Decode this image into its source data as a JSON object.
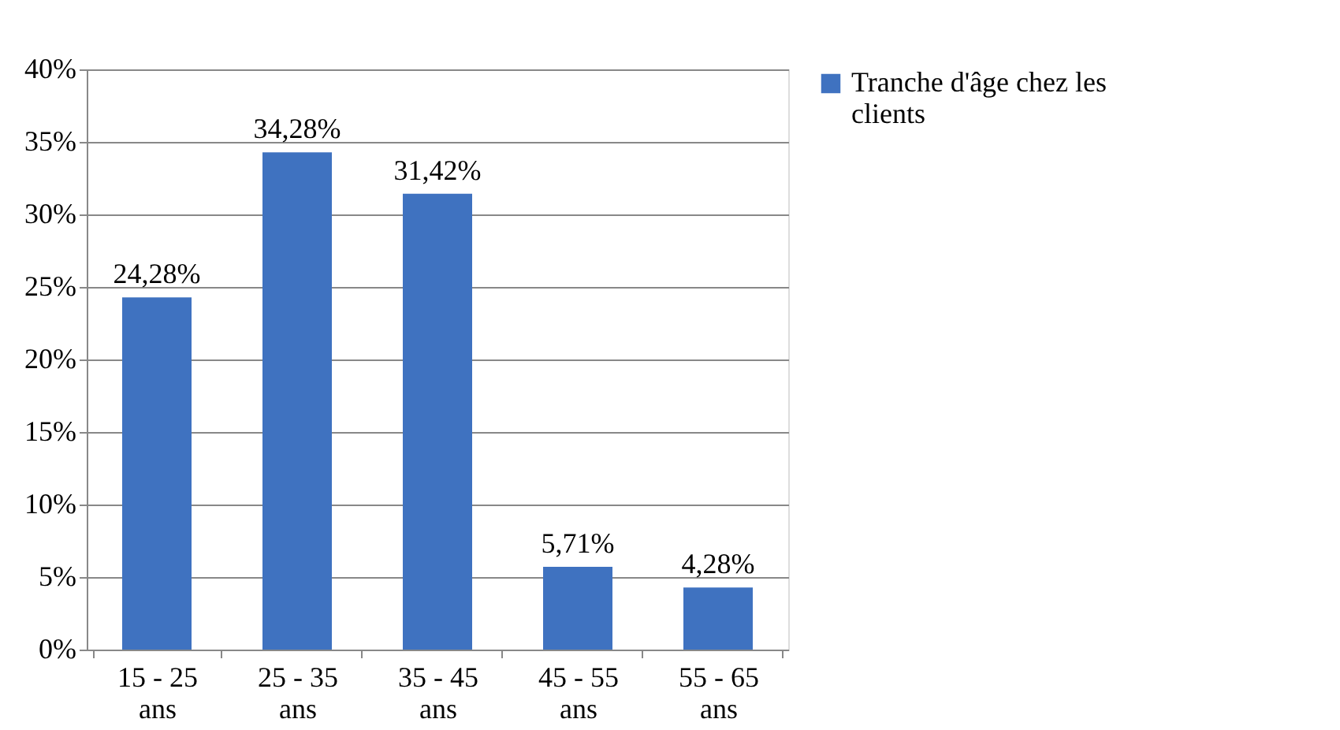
{
  "chart_data": {
    "type": "bar",
    "categories": [
      "15 - 25 ans",
      "25 - 35 ans",
      "35 - 45 ans",
      "45 - 55 ans",
      "55 - 65 ans"
    ],
    "series": [
      {
        "name": "Tranche d'âge chez les clients",
        "color": "#3f72c0",
        "values": [
          24.28,
          34.28,
          31.42,
          5.71,
          4.28
        ],
        "value_labels": [
          "24,28%",
          "34,28%",
          "31,42%",
          "5,71%",
          "4,28%"
        ]
      }
    ],
    "ylim": [
      0,
      40
    ],
    "yticks": [
      {
        "value": 0,
        "label": "0%"
      },
      {
        "value": 5,
        "label": "5%"
      },
      {
        "value": 10,
        "label": "10%"
      },
      {
        "value": 15,
        "label": "15%"
      },
      {
        "value": 20,
        "label": "20%"
      },
      {
        "value": 25,
        "label": "25%"
      },
      {
        "value": 30,
        "label": "30%"
      },
      {
        "value": 35,
        "label": "35%"
      },
      {
        "value": 40,
        "label": "40%"
      }
    ],
    "grid": "y",
    "legend": "right"
  }
}
